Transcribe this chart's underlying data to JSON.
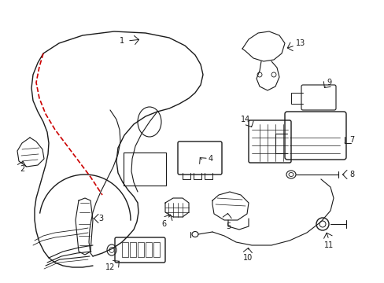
{
  "bg_color": "#ffffff",
  "line_color": "#1a1a1a",
  "red_color": "#cc0000",
  "figsize": [
    4.89,
    3.6
  ],
  "dpi": 100,
  "xlim": [
    0,
    489
  ],
  "ylim": [
    0,
    360
  ]
}
